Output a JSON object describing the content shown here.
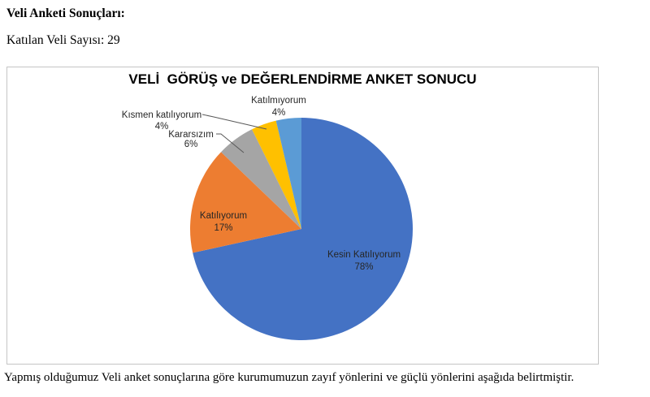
{
  "document": {
    "heading": "Veli Anketi Sonuçları:",
    "participants_line": "Katılan Veli Sayısı: 29",
    "closing_paragraph": "Yapmış olduğumuz Veli anket sonuçlarına göre kurumumuzun zayıf yönlerini ve güçlü yönlerini aşağıda belirtmiştir."
  },
  "chart_data": {
    "type": "pie",
    "title": "VELİ  GÖRÜŞ ve DEĞERLENDİRME ANKET SONUCU",
    "categories": [
      "Kesin Katılıyorum",
      "Katılıyorum",
      "Kararsızım",
      "Kısmen katılıyorum",
      "Katılmıyorum"
    ],
    "values": [
      78,
      17,
      6,
      4,
      4
    ],
    "value_unit": "percent",
    "start_angle_deg": 0,
    "direction": "clockwise",
    "legend": "none",
    "label_style": "category + percent; small slices labeled outside with leader lines",
    "leader_line_color": "#595959",
    "slices": [
      {
        "label": "Kesin Katılıyorum",
        "value": 78,
        "pct_label": "78%",
        "color": "#4472C4",
        "label_position": "inside"
      },
      {
        "label": "Katılıyorum",
        "value": 17,
        "pct_label": "17%",
        "color": "#ED7D31",
        "label_position": "inside"
      },
      {
        "label": "Kararsızım",
        "value": 6,
        "pct_label": "6%",
        "color": "#A5A5A5",
        "label_position": "outside"
      },
      {
        "label": "Kısmen katılıyorum",
        "value": 4,
        "pct_label": "4%",
        "color": "#FFC000",
        "label_position": "outside"
      },
      {
        "label": "Katılmıyorum",
        "value": 4,
        "pct_label": "4%",
        "color": "#5B9BD5",
        "label_position": "outside"
      }
    ]
  }
}
